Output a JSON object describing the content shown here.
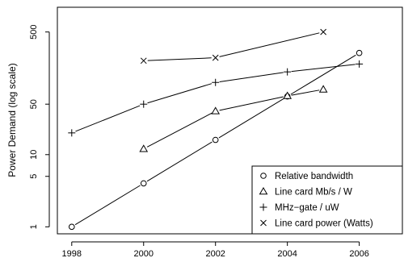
{
  "chart_data": {
    "type": "line",
    "title": "",
    "xlabel": "",
    "ylabel": "Power Demand (log scale)",
    "xlim": [
      1997.6,
      2007.2
    ],
    "ylim": [
      0.8,
      1100
    ],
    "y_scale": "log",
    "grid": false,
    "legend_position": "bottom-right",
    "x_ticks": [
      1998,
      2000,
      2002,
      2004,
      2006
    ],
    "y_ticks": [
      1,
      5,
      10,
      50,
      500
    ],
    "series": [
      {
        "name": "Relative bandwidth",
        "marker": "circle",
        "x": [
          1998,
          2000,
          2002,
          2004,
          2006
        ],
        "y": [
          1,
          4,
          16,
          64,
          256
        ]
      },
      {
        "name": "Line card Mb/s / W",
        "marker": "triangle",
        "x": [
          2000,
          2002,
          2004,
          2005
        ],
        "y": [
          12,
          40,
          65,
          80
        ]
      },
      {
        "name": "MHz−gate / uW",
        "marker": "plus",
        "x": [
          1998,
          2000,
          2002,
          2004,
          2006
        ],
        "y": [
          20,
          50,
          100,
          140,
          180
        ]
      },
      {
        "name": "Line card power (Watts)",
        "marker": "cross",
        "x": [
          2000,
          2002,
          2005
        ],
        "y": [
          200,
          220,
          500
        ]
      }
    ]
  }
}
